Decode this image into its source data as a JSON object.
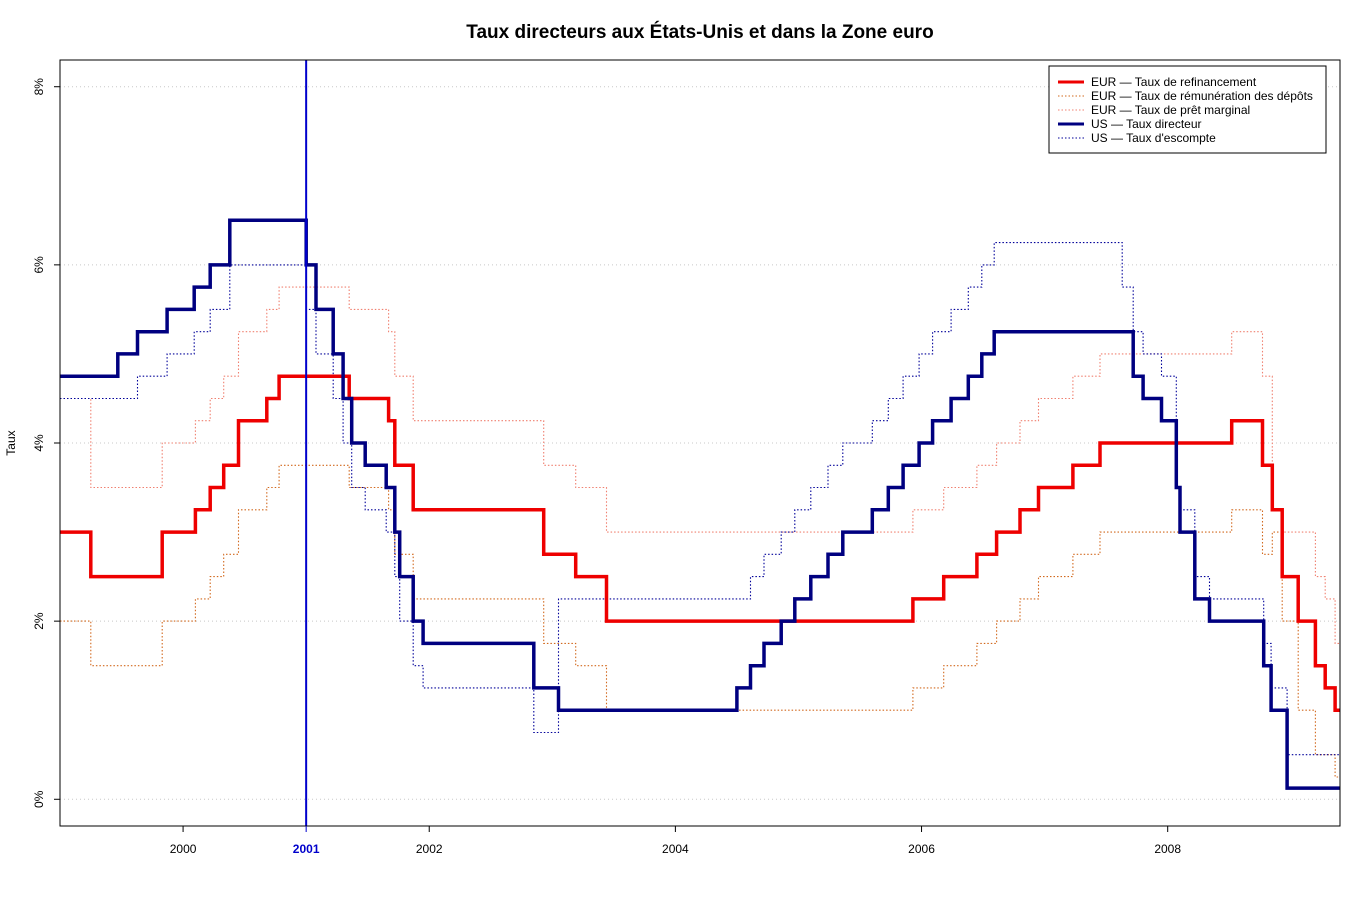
{
  "chart_data": {
    "type": "line",
    "title": "Taux directeurs aux États-Unis et dans la Zone euro",
    "xlabel": "",
    "ylabel": "Taux",
    "xlim": [
      1999.0,
      2009.4
    ],
    "ylim": [
      -0.3,
      8.3
    ],
    "x_ticks": [
      2000,
      2002,
      2004,
      2006,
      2008
    ],
    "x_tick_labels": [
      "2000",
      "2002",
      "2004",
      "2006",
      "2008"
    ],
    "y_ticks": [
      0,
      2,
      4,
      6,
      8
    ],
    "y_tick_labels": [
      "0%",
      "2%",
      "4%",
      "6%",
      "8%"
    ],
    "grid": "horizontal dotted",
    "legend_position": "top-right",
    "highlight": {
      "x": 2001,
      "label": "2001",
      "color": "#0000cc"
    },
    "series": [
      {
        "name": "EUR — Taux de refinancement",
        "color": "#ee0000",
        "style": "solid-thick",
        "steps": [
          [
            1999.0,
            3.0
          ],
          [
            1999.25,
            2.5
          ],
          [
            1999.83,
            3.0
          ],
          [
            2000.1,
            3.25
          ],
          [
            2000.22,
            3.5
          ],
          [
            2000.33,
            3.75
          ],
          [
            2000.45,
            4.25
          ],
          [
            2000.68,
            4.5
          ],
          [
            2000.78,
            4.75
          ],
          [
            2001.35,
            4.5
          ],
          [
            2001.67,
            4.25
          ],
          [
            2001.72,
            3.75
          ],
          [
            2001.87,
            3.25
          ],
          [
            2002.93,
            2.75
          ],
          [
            2003.19,
            2.5
          ],
          [
            2003.44,
            2.0
          ],
          [
            2005.93,
            2.25
          ],
          [
            2006.18,
            2.5
          ],
          [
            2006.45,
            2.75
          ],
          [
            2006.61,
            3.0
          ],
          [
            2006.8,
            3.25
          ],
          [
            2006.95,
            3.5
          ],
          [
            2007.23,
            3.75
          ],
          [
            2007.45,
            4.0
          ],
          [
            2008.52,
            4.25
          ],
          [
            2008.77,
            3.75
          ],
          [
            2008.85,
            3.25
          ],
          [
            2008.93,
            2.5
          ],
          [
            2009.06,
            2.0
          ],
          [
            2009.2,
            1.5
          ],
          [
            2009.28,
            1.25
          ],
          [
            2009.36,
            1.0
          ],
          [
            2009.4,
            1.0
          ]
        ]
      },
      {
        "name": "EUR — Taux de rémunération des dépôts",
        "color": "#d2691e",
        "style": "dotted",
        "steps": [
          [
            1999.0,
            2.0
          ],
          [
            1999.25,
            1.5
          ],
          [
            1999.83,
            2.0
          ],
          [
            2000.1,
            2.25
          ],
          [
            2000.22,
            2.5
          ],
          [
            2000.33,
            2.75
          ],
          [
            2000.45,
            3.25
          ],
          [
            2000.68,
            3.5
          ],
          [
            2000.78,
            3.75
          ],
          [
            2001.35,
            3.5
          ],
          [
            2001.67,
            3.25
          ],
          [
            2001.72,
            2.75
          ],
          [
            2001.87,
            2.25
          ],
          [
            2002.93,
            1.75
          ],
          [
            2003.19,
            1.5
          ],
          [
            2003.44,
            1.0
          ],
          [
            2005.93,
            1.25
          ],
          [
            2006.18,
            1.5
          ],
          [
            2006.45,
            1.75
          ],
          [
            2006.61,
            2.0
          ],
          [
            2006.8,
            2.25
          ],
          [
            2006.95,
            2.5
          ],
          [
            2007.23,
            2.75
          ],
          [
            2007.45,
            3.0
          ],
          [
            2008.52,
            3.25
          ],
          [
            2008.77,
            2.75
          ],
          [
            2008.85,
            3.0
          ],
          [
            2008.93,
            2.0
          ],
          [
            2009.06,
            1.0
          ],
          [
            2009.2,
            0.5
          ],
          [
            2009.36,
            0.25
          ],
          [
            2009.4,
            0.25
          ]
        ]
      },
      {
        "name": "EUR — Taux de  prêt marginal",
        "color": "#f08070",
        "style": "dotted",
        "steps": [
          [
            1999.0,
            4.5
          ],
          [
            1999.25,
            3.5
          ],
          [
            1999.83,
            4.0
          ],
          [
            2000.1,
            4.25
          ],
          [
            2000.22,
            4.5
          ],
          [
            2000.33,
            4.75
          ],
          [
            2000.45,
            5.25
          ],
          [
            2000.68,
            5.5
          ],
          [
            2000.78,
            5.75
          ],
          [
            2001.35,
            5.5
          ],
          [
            2001.67,
            5.25
          ],
          [
            2001.72,
            4.75
          ],
          [
            2001.87,
            4.25
          ],
          [
            2002.93,
            3.75
          ],
          [
            2003.19,
            3.5
          ],
          [
            2003.44,
            3.0
          ],
          [
            2005.93,
            3.25
          ],
          [
            2006.18,
            3.5
          ],
          [
            2006.45,
            3.75
          ],
          [
            2006.61,
            4.0
          ],
          [
            2006.8,
            4.25
          ],
          [
            2006.95,
            4.5
          ],
          [
            2007.23,
            4.75
          ],
          [
            2007.45,
            5.0
          ],
          [
            2008.52,
            5.25
          ],
          [
            2008.77,
            4.75
          ],
          [
            2008.85,
            3.25
          ],
          [
            2008.93,
            3.0
          ],
          [
            2009.2,
            2.5
          ],
          [
            2009.28,
            2.25
          ],
          [
            2009.36,
            1.75
          ],
          [
            2009.4,
            1.75
          ]
        ]
      },
      {
        "name": "US — Taux directeur",
        "color": "#000080",
        "style": "solid-thick",
        "steps": [
          [
            1999.0,
            4.75
          ],
          [
            1999.47,
            5.0
          ],
          [
            1999.63,
            5.25
          ],
          [
            1999.87,
            5.5
          ],
          [
            2000.09,
            5.75
          ],
          [
            2000.22,
            6.0
          ],
          [
            2000.38,
            6.5
          ],
          [
            2001.0,
            6.0
          ],
          [
            2001.08,
            5.5
          ],
          [
            2001.22,
            5.0
          ],
          [
            2001.3,
            4.5
          ],
          [
            2001.37,
            4.0
          ],
          [
            2001.48,
            3.75
          ],
          [
            2001.65,
            3.5
          ],
          [
            2001.72,
            3.0
          ],
          [
            2001.76,
            2.5
          ],
          [
            2001.87,
            2.0
          ],
          [
            2001.95,
            1.75
          ],
          [
            2002.85,
            1.25
          ],
          [
            2003.05,
            1.0
          ],
          [
            2004.5,
            1.25
          ],
          [
            2004.61,
            1.5
          ],
          [
            2004.72,
            1.75
          ],
          [
            2004.86,
            2.0
          ],
          [
            2004.97,
            2.25
          ],
          [
            2005.1,
            2.5
          ],
          [
            2005.24,
            2.75
          ],
          [
            2005.36,
            3.0
          ],
          [
            2005.6,
            3.25
          ],
          [
            2005.73,
            3.5
          ],
          [
            2005.85,
            3.75
          ],
          [
            2005.98,
            4.0
          ],
          [
            2006.09,
            4.25
          ],
          [
            2006.24,
            4.5
          ],
          [
            2006.38,
            4.75
          ],
          [
            2006.49,
            5.0
          ],
          [
            2006.59,
            5.25
          ],
          [
            2007.72,
            4.75
          ],
          [
            2007.8,
            4.5
          ],
          [
            2007.95,
            4.25
          ],
          [
            2008.07,
            3.5
          ],
          [
            2008.1,
            3.0
          ],
          [
            2008.22,
            2.25
          ],
          [
            2008.34,
            2.0
          ],
          [
            2008.78,
            1.5
          ],
          [
            2008.84,
            1.0
          ],
          [
            2008.97,
            0.125
          ],
          [
            2009.4,
            0.125
          ]
        ]
      },
      {
        "name": "US — Taux d'escompte",
        "color": "#000099",
        "style": "dotted",
        "steps": [
          [
            1999.0,
            4.5
          ],
          [
            1999.63,
            4.75
          ],
          [
            1999.87,
            5.0
          ],
          [
            2000.09,
            5.25
          ],
          [
            2000.22,
            5.5
          ],
          [
            2000.38,
            6.0
          ],
          [
            2001.0,
            5.5
          ],
          [
            2001.08,
            5.0
          ],
          [
            2001.22,
            4.5
          ],
          [
            2001.3,
            4.0
          ],
          [
            2001.37,
            3.5
          ],
          [
            2001.48,
            3.25
          ],
          [
            2001.65,
            3.0
          ],
          [
            2001.72,
            2.5
          ],
          [
            2001.76,
            2.0
          ],
          [
            2001.87,
            1.5
          ],
          [
            2001.95,
            1.25
          ],
          [
            2002.85,
            0.75
          ],
          [
            2003.05,
            2.25
          ],
          [
            2004.5,
            2.25
          ],
          [
            2004.61,
            2.5
          ],
          [
            2004.72,
            2.75
          ],
          [
            2004.86,
            3.0
          ],
          [
            2004.97,
            3.25
          ],
          [
            2005.1,
            3.5
          ],
          [
            2005.24,
            3.75
          ],
          [
            2005.36,
            4.0
          ],
          [
            2005.6,
            4.25
          ],
          [
            2005.73,
            4.5
          ],
          [
            2005.85,
            4.75
          ],
          [
            2005.98,
            5.0
          ],
          [
            2006.09,
            5.25
          ],
          [
            2006.24,
            5.5
          ],
          [
            2006.38,
            5.75
          ],
          [
            2006.49,
            6.0
          ],
          [
            2006.59,
            6.25
          ],
          [
            2007.63,
            5.75
          ],
          [
            2007.72,
            5.25
          ],
          [
            2007.8,
            5.0
          ],
          [
            2007.95,
            4.75
          ],
          [
            2008.07,
            3.5
          ],
          [
            2008.1,
            3.25
          ],
          [
            2008.22,
            2.5
          ],
          [
            2008.34,
            2.25
          ],
          [
            2008.78,
            1.75
          ],
          [
            2008.84,
            1.25
          ],
          [
            2008.97,
            0.5
          ],
          [
            2009.4,
            0.5
          ]
        ]
      }
    ]
  }
}
